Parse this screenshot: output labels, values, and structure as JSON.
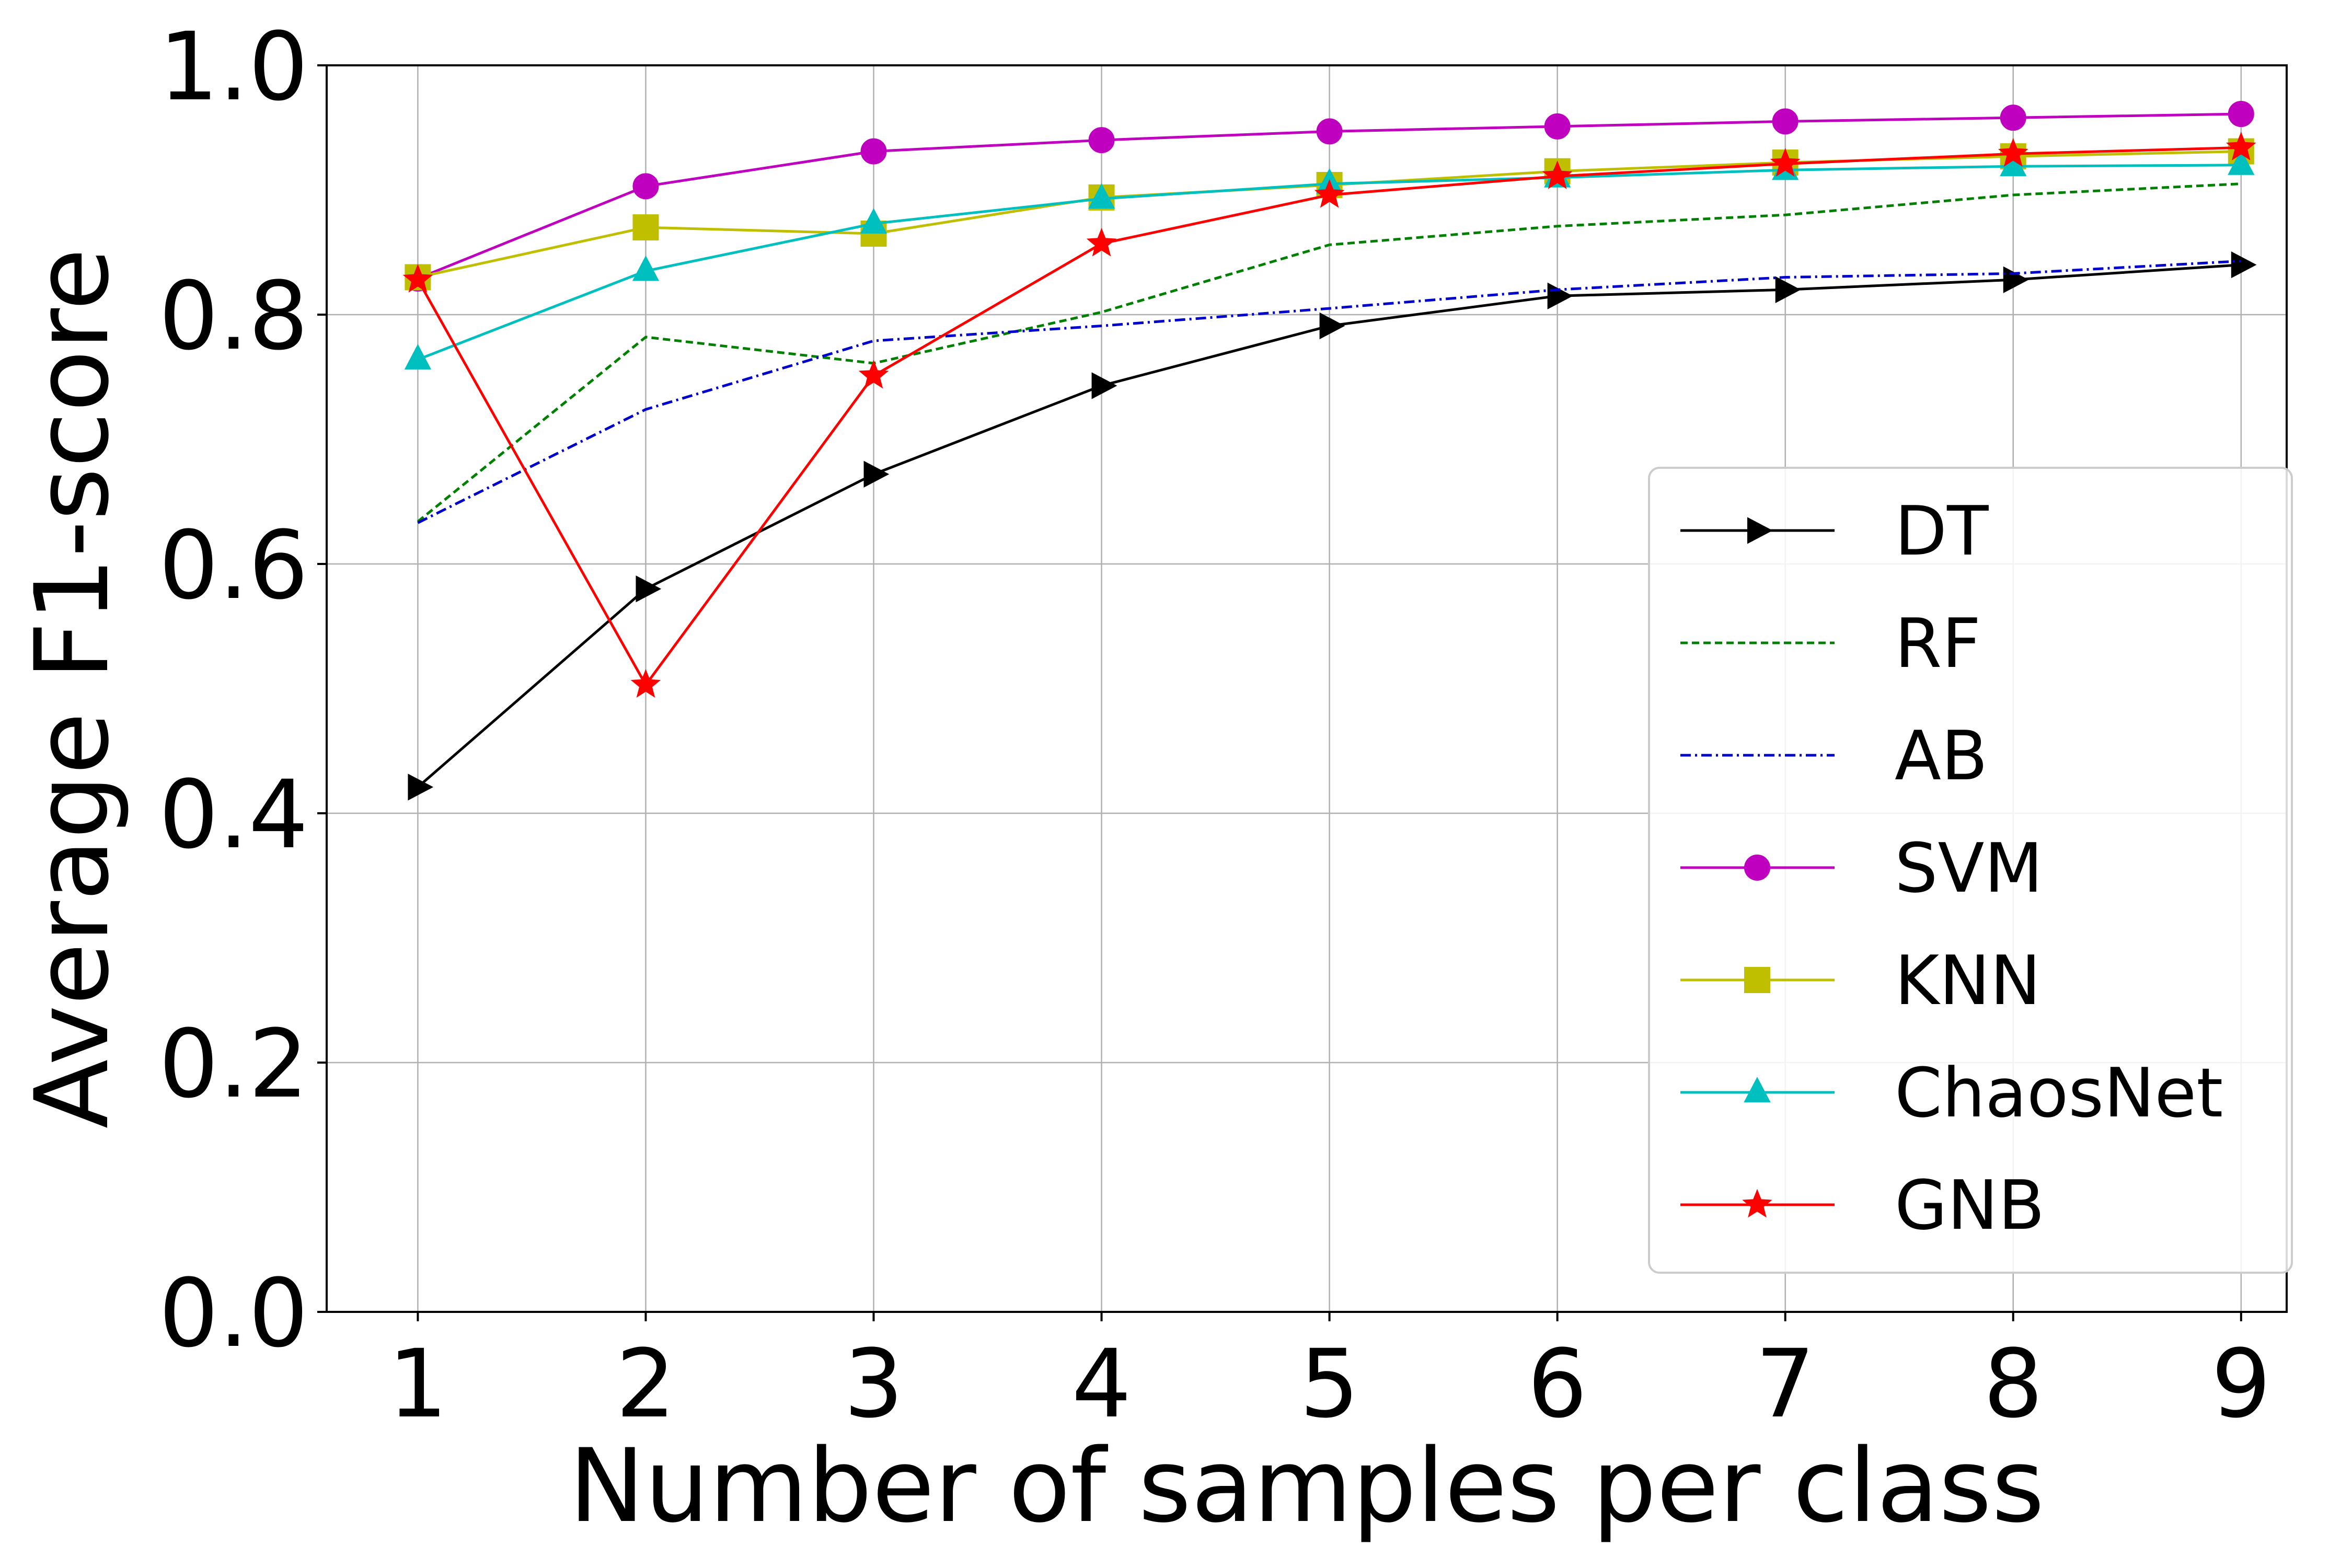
{
  "chart_data": {
    "type": "line",
    "title": "",
    "xlabel": "Number of samples per class",
    "ylabel": "Average F1-score",
    "x": [
      1,
      2,
      3,
      4,
      5,
      6,
      7,
      8,
      9
    ],
    "xlim": [
      0.6,
      9.2
    ],
    "ylim": [
      0.0,
      1.0
    ],
    "xticks": [
      "1",
      "2",
      "3",
      "4",
      "5",
      "6",
      "7",
      "8",
      "9"
    ],
    "yticks": [
      "0.0",
      "0.2",
      "0.4",
      "0.6",
      "0.8",
      "1.0"
    ],
    "grid": true,
    "legend_position": "lower-right",
    "series": [
      {
        "name": "DT",
        "color": "#000000",
        "dash": "solid",
        "marker": "triangle-right",
        "values": [
          0.421,
          0.58,
          0.672,
          0.743,
          0.791,
          0.815,
          0.82,
          0.828,
          0.84
        ]
      },
      {
        "name": "RF",
        "color": "#008000",
        "dash": "dashed",
        "marker": "none",
        "values": [
          0.634,
          0.782,
          0.761,
          0.802,
          0.856,
          0.871,
          0.88,
          0.896,
          0.905
        ]
      },
      {
        "name": "AB",
        "color": "#0000cc",
        "dash": "dashdot",
        "marker": "none",
        "values": [
          0.633,
          0.724,
          0.779,
          0.791,
          0.805,
          0.82,
          0.83,
          0.833,
          0.843
        ]
      },
      {
        "name": "SVM",
        "color": "#bf00bf",
        "dash": "solid",
        "marker": "circle",
        "values": [
          0.829,
          0.903,
          0.931,
          0.94,
          0.947,
          0.951,
          0.955,
          0.958,
          0.961
        ]
      },
      {
        "name": "KNN",
        "color": "#bfbf00",
        "dash": "solid",
        "marker": "square",
        "values": [
          0.83,
          0.87,
          0.865,
          0.894,
          0.904,
          0.915,
          0.922,
          0.927,
          0.931
        ]
      },
      {
        "name": "ChaosNet",
        "color": "#00bfbf",
        "dash": "solid",
        "marker": "triangle-up",
        "values": [
          0.764,
          0.835,
          0.873,
          0.893,
          0.905,
          0.91,
          0.916,
          0.919,
          0.92
        ]
      },
      {
        "name": "GNB",
        "color": "#ff0000",
        "dash": "solid",
        "marker": "star",
        "values": [
          0.828,
          0.503,
          0.751,
          0.857,
          0.896,
          0.911,
          0.921,
          0.929,
          0.934
        ]
      }
    ]
  }
}
